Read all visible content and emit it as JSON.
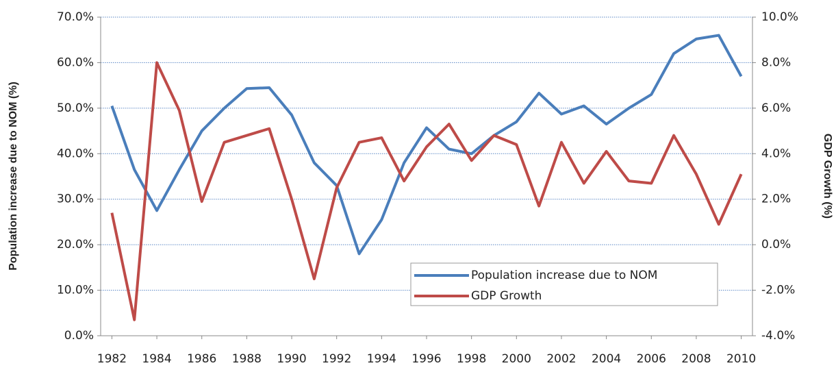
{
  "chart_data": {
    "type": "line",
    "x": [
      1982,
      1983,
      1984,
      1985,
      1986,
      1987,
      1988,
      1989,
      1990,
      1991,
      1992,
      1993,
      1994,
      1995,
      1996,
      1997,
      1998,
      1999,
      2000,
      2001,
      2002,
      2003,
      2004,
      2005,
      2006,
      2007,
      2008,
      2009,
      2010
    ],
    "xlim": [
      1981.5,
      2010.5
    ],
    "xticks": [
      1982,
      1984,
      1986,
      1988,
      1990,
      1992,
      1994,
      1996,
      1998,
      2000,
      2002,
      2004,
      2006,
      2008,
      2010
    ],
    "y_label": "Population increase due to NOM (%)",
    "y2_label": "GDP Growth (%)",
    "ylim": [
      0,
      70
    ],
    "yticks": [
      {
        "value": 0,
        "label": "0.0%"
      },
      {
        "value": 10,
        "label": "10.0%"
      },
      {
        "value": 20,
        "label": "20.0%"
      },
      {
        "value": 30,
        "label": "30.0%"
      },
      {
        "value": 40,
        "label": "40.0%"
      },
      {
        "value": 50,
        "label": "50.0%"
      },
      {
        "value": 60,
        "label": "60.0%"
      },
      {
        "value": 70,
        "label": "70.0%"
      }
    ],
    "y2lim": [
      -4,
      10
    ],
    "y2ticks": [
      {
        "value": -4,
        "label": "-4.0%"
      },
      {
        "value": -2,
        "label": "-2.0%"
      },
      {
        "value": 0,
        "label": "0.0%"
      },
      {
        "value": 2,
        "label": "2.0%"
      },
      {
        "value": 4,
        "label": "4.0%"
      },
      {
        "value": 6,
        "label": "6.0%"
      },
      {
        "value": 8,
        "label": "8.0%"
      },
      {
        "value": 10,
        "label": "10.0%"
      }
    ],
    "grid": true,
    "legend": "lower right",
    "series": [
      {
        "name": "Population increase due to NOM",
        "color": "#4a7ebb",
        "values": [
          50.5,
          36.5,
          27.5,
          36.5,
          45,
          50,
          54.3,
          54.5,
          48.5,
          38,
          33,
          18,
          25.5,
          38,
          45.7,
          41,
          40,
          44,
          47,
          53.3,
          48.7,
          50.5,
          46.5,
          50,
          53,
          62,
          65.2,
          66,
          57
        ]
      },
      {
        "name": "GDP Growth",
        "color": "#be4b48",
        "axis": "y2",
        "values": [
          1.4,
          -3.3,
          8.0,
          5.9,
          1.9,
          4.5,
          4.8,
          5.1,
          2.0,
          -1.5,
          2.5,
          4.5,
          4.7,
          2.8,
          4.3,
          5.3,
          3.7,
          4.8,
          4.4,
          1.7,
          4.5,
          2.7,
          4.1,
          2.8,
          2.7,
          4.8,
          3.1,
          0.9,
          3.1
        ]
      }
    ]
  }
}
